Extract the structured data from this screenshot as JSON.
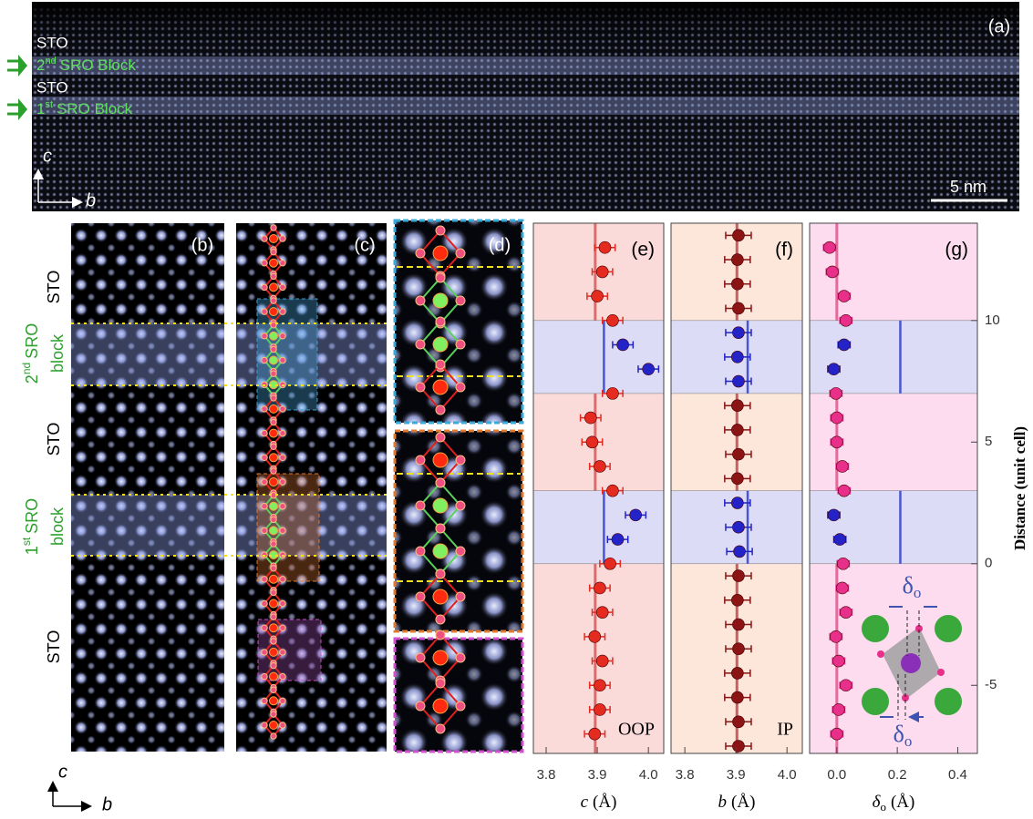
{
  "panel_a": {
    "label": "(a)",
    "layers": [
      {
        "text": "STO"
      },
      {
        "num": "2",
        "sup": "nd",
        "text": "SRO Block"
      },
      {
        "text": "STO"
      },
      {
        "num": "1",
        "sup": "st",
        "text": "SRO Block"
      }
    ],
    "axis_c": "c",
    "axis_b": "b",
    "scale_bar": "5 nm"
  },
  "panel_b": {
    "label": "(b)",
    "layers": [
      {
        "text": "STO"
      },
      {
        "num": "2",
        "sup": "nd",
        "text": "SRO",
        "line2": "block"
      },
      {
        "text": "STO"
      },
      {
        "num": "1",
        "sup": "st",
        "text": "SRO",
        "line2": "block"
      },
      {
        "text": "STO"
      }
    ],
    "axis_c": "c",
    "axis_b": "b"
  },
  "panel_c": {
    "label": "(c)"
  },
  "panel_d": {
    "label": "(d)"
  },
  "chart_data": [
    {
      "type": "scatter",
      "label": "(e)",
      "annotation": "OOP",
      "xlabel": {
        "symbol": "c",
        "unit": "(Å)"
      },
      "xlim": [
        3.775,
        4.03
      ],
      "xticks": [
        3.8,
        3.9,
        {
          "value": 4,
          "label": "4.0"
        }
      ],
      "ylim": [
        -7.8,
        14
      ],
      "background": "#fbdada",
      "base_line": {
        "value": 3.896,
        "color": "#e06a6a"
      },
      "band_line_color": "#4a55d0",
      "bands": [
        {
          "from": 7,
          "to": 10,
          "color": "#dcdcf6",
          "line": 3.913
        },
        {
          "from": 0,
          "to": 3,
          "color": "#dcdcf6",
          "line": 3.913
        }
      ],
      "xerr": 0.02,
      "series": [
        {
          "color": "#e52b20",
          "y": [
            13,
            12,
            11,
            10,
            7,
            6,
            5,
            4,
            3,
            0,
            -1,
            -2,
            -3,
            -4,
            -5,
            -6,
            -7
          ],
          "x": [
            3.915,
            3.91,
            3.9,
            3.93,
            3.93,
            3.887,
            3.89,
            3.905,
            3.93,
            3.925,
            3.905,
            3.91,
            3.895,
            3.91,
            3.905,
            3.905,
            3.895
          ]
        },
        {
          "color": "#2323c8",
          "y": [
            9,
            8,
            2,
            1
          ],
          "x": [
            3.95,
            4.0,
            3.975,
            3.94
          ]
        }
      ]
    },
    {
      "type": "scatter",
      "label": "(f)",
      "annotation": "IP",
      "xlabel": {
        "symbol": "b",
        "unit": "(Å)"
      },
      "xlim": [
        3.773,
        4.03
      ],
      "xticks": [
        3.8,
        3.9,
        {
          "value": 4,
          "label": "4.0"
        }
      ],
      "ylim": [
        -7.8,
        14
      ],
      "background": "#fde6da",
      "base_line": {
        "value": 3.902,
        "color": "#c96060"
      },
      "band_line_color": "#4a55d0",
      "bands": [
        {
          "from": 7,
          "to": 10,
          "color": "#dcdcf6",
          "line": 3.923
        },
        {
          "from": 0,
          "to": 3,
          "color": "#dcdcf6",
          "line": 3.923
        }
      ],
      "xerr": 0.025,
      "series": [
        {
          "color": "#8b1414",
          "y": [
            13.5,
            12.5,
            11.5,
            10.5,
            6.5,
            5.5,
            4.5,
            3.5,
            -0.5,
            -1.5,
            -2.5,
            -3.5,
            -4.5,
            -5.5,
            -6.5,
            -7.5
          ],
          "x": [
            3.905,
            3.903,
            3.903,
            3.905,
            3.903,
            3.903,
            3.905,
            3.903,
            3.905,
            3.903,
            3.905,
            3.905,
            3.903,
            3.903,
            3.905,
            3.905
          ]
        },
        {
          "color": "#2323c8",
          "y": [
            9.5,
            8.5,
            7.5,
            2.5,
            1.5,
            0.5
          ],
          "x": [
            3.905,
            3.903,
            3.905,
            3.903,
            3.905,
            3.907
          ]
        }
      ]
    },
    {
      "type": "scatter",
      "label": "(g)",
      "xlabel": {
        "symbol": "δ",
        "sub": "o",
        "unit": "(Å)"
      },
      "xlim": [
        -0.09,
        0.465
      ],
      "xticks": [
        {
          "value": 0,
          "label": "0.0"
        },
        0.2,
        0.4
      ],
      "ylim": [
        -7.8,
        14
      ],
      "yticks": [
        -5,
        0,
        5,
        10
      ],
      "ylabel": "Distance (unit cell)",
      "background": "#fcdcee",
      "base_line": {
        "value": 0,
        "color": "#e46a9a"
      },
      "band_line_color": "#4a55d0",
      "bands": [
        {
          "from": 7,
          "to": 10,
          "color": "#dcdcf6",
          "line": 0.21
        },
        {
          "from": 0,
          "to": 3,
          "color": "#dcdcf6",
          "line": 0.21
        }
      ],
      "xerr": 0.02,
      "series": [
        {
          "color": "#e8308a",
          "y": [
            13,
            12,
            11,
            10,
            7,
            6,
            5,
            4,
            3,
            0,
            -1,
            -2,
            -3,
            -4,
            -5,
            -6,
            -7
          ],
          "x": [
            -0.024,
            -0.015,
            0.024,
            0.03,
            -0.003,
            0,
            0,
            0.018,
            0.024,
            0.021,
            0.018,
            0.03,
            -0.003,
            0.006,
            0.03,
            0.006,
            0
          ]
        },
        {
          "color": "#2323c8",
          "y": [
            9,
            8,
            2,
            1
          ],
          "x": [
            0.024,
            -0.01,
            -0.01,
            0.01
          ]
        }
      ],
      "inset_labels": [
        {
          "symbol": "δ",
          "sub": "o"
        },
        {
          "symbol": "δ",
          "sub": "o"
        }
      ]
    }
  ]
}
